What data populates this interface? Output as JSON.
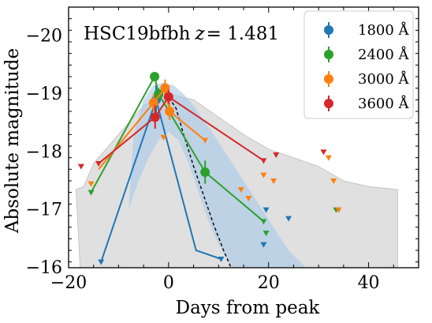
{
  "chart_data": {
    "type": "scatter",
    "xlabel": "Days from peak",
    "ylabel": "Absolute magnitude",
    "xlim": [
      -20,
      50
    ],
    "ylim": [
      -16,
      -20.5
    ],
    "invert_y": true,
    "x_ticks": [
      -20,
      0,
      20,
      40
    ],
    "y_ticks": [
      -20,
      -19,
      -18,
      -17,
      -16
    ],
    "annotation": {
      "name": "HSC19bfbh",
      "zlabel": "z",
      "zvalue": "= 1.481"
    },
    "legend_position": "top-right",
    "series": [
      {
        "name": "1800 Å",
        "color": "#1f77b4",
        "detections": [
          {
            "x": -2.5,
            "y": -18.9,
            "yerr": 0.25
          }
        ],
        "line": [
          [
            -13.5,
            -16.1
          ],
          [
            -2.5,
            -18.9
          ],
          [
            5.5,
            -16.3
          ],
          [
            10.5,
            -16.15
          ]
        ],
        "upper_limits": [
          [
            -13.5,
            -16.1
          ],
          [
            10.5,
            -16.15
          ],
          [
            19.5,
            -17.0
          ],
          [
            19.0,
            -16.4
          ],
          [
            24.0,
            -16.85
          ]
        ]
      },
      {
        "name": "2400 Å",
        "color": "#2ca02c",
        "detections": [
          {
            "x": -2.8,
            "y": -19.3,
            "yerr": 0.08
          },
          {
            "x": -2.0,
            "y": -19.0,
            "yerr": 0.1
          },
          {
            "x": 7.3,
            "y": -17.65,
            "yerr": 0.2
          }
        ],
        "line": [
          [
            -15.5,
            -17.3
          ],
          [
            -2.8,
            -19.3
          ],
          [
            -2.0,
            -19.0
          ],
          [
            7.3,
            -17.65
          ],
          [
            19.0,
            -16.8
          ]
        ],
        "upper_limits": [
          [
            -15.5,
            -17.3
          ],
          [
            19.0,
            -16.8
          ],
          [
            19.5,
            -16.6
          ],
          [
            33.5,
            -17.0
          ]
        ]
      },
      {
        "name": "3000 Å",
        "color": "#ff7f0e",
        "detections": [
          {
            "x": -3.0,
            "y": -18.85,
            "yerr": 0.15
          },
          {
            "x": -0.7,
            "y": -19.1,
            "yerr": 0.15
          },
          {
            "x": 0.2,
            "y": -18.7,
            "yerr": 0.15
          }
        ],
        "line": [
          [
            -14.0,
            -17.7
          ],
          [
            -3.0,
            -18.85
          ],
          [
            -0.7,
            -19.1
          ],
          [
            0.2,
            -18.7
          ],
          [
            7.3,
            -18.2
          ]
        ],
        "upper_limits": [
          [
            -15.5,
            -17.45
          ],
          [
            -1.0,
            -18.25
          ],
          [
            7.3,
            -18.2
          ],
          [
            14.5,
            -17.35
          ],
          [
            16.0,
            -17.2
          ],
          [
            19.0,
            -17.6
          ],
          [
            21.0,
            -17.5
          ],
          [
            32.0,
            -17.9
          ],
          [
            33.0,
            -17.5
          ],
          [
            34.0,
            -17.0
          ]
        ]
      },
      {
        "name": "3600 Å",
        "color": "#d62728",
        "detections": [
          {
            "x": -2.7,
            "y": -18.6,
            "yerr": 0.2
          },
          {
            "x": 0.0,
            "y": -18.95,
            "yerr": 0.12
          }
        ],
        "line": [
          [
            -14.0,
            -17.8
          ],
          [
            -2.7,
            -18.6
          ],
          [
            0.0,
            -18.95
          ],
          [
            19.0,
            -17.85
          ]
        ],
        "upper_limits": [
          [
            -17.5,
            -17.75
          ],
          [
            -14.0,
            -17.8
          ],
          [
            19.0,
            -17.85
          ],
          [
            21.5,
            -17.95
          ],
          [
            31.0,
            -18.0
          ]
        ]
      }
    ],
    "models": {
      "gray_band": {
        "color": "#d3d3d3",
        "upper": [
          [
            -18.5,
            -17.35
          ],
          [
            -17.0,
            -17.4
          ],
          [
            -15.0,
            -17.8
          ],
          [
            -10.0,
            -18.3
          ],
          [
            -5.0,
            -18.8
          ],
          [
            0.0,
            -19.0
          ],
          [
            5.0,
            -18.9
          ],
          [
            10.0,
            -18.6
          ],
          [
            15.0,
            -18.3
          ],
          [
            20.0,
            -18.05
          ],
          [
            25.0,
            -17.9
          ],
          [
            30.0,
            -17.75
          ],
          [
            35.0,
            -17.5
          ],
          [
            40.0,
            -17.4
          ],
          [
            45.8,
            -17.35
          ]
        ],
        "lower": [
          [
            -18.5,
            -17.35
          ],
          [
            -17.7,
            -16.0
          ],
          [
            -16.0,
            -16.0
          ],
          [
            -10.0,
            -16.0
          ],
          [
            -5.0,
            -16.0
          ],
          [
            0.0,
            -16.0
          ],
          [
            5.0,
            -16.0
          ],
          [
            10.0,
            -16.0
          ],
          [
            15.0,
            -16.0
          ],
          [
            20.0,
            -16.0
          ],
          [
            25.0,
            -16.0
          ],
          [
            30.0,
            -16.0
          ],
          [
            35.0,
            -16.0
          ],
          [
            40.0,
            -16.0
          ],
          [
            45.8,
            -16.0
          ]
        ]
      },
      "blue_band": {
        "color": "#a6c8e8",
        "upper": [
          [
            -8.0,
            -17.0
          ],
          [
            -7.0,
            -18.3
          ],
          [
            -5.0,
            -18.9
          ],
          [
            -3.0,
            -19.15
          ],
          [
            -1.0,
            -19.2
          ],
          [
            1.0,
            -19.15
          ],
          [
            3.0,
            -19.0
          ],
          [
            5.0,
            -18.8
          ],
          [
            7.0,
            -18.55
          ],
          [
            9.0,
            -18.3
          ],
          [
            12.0,
            -17.9
          ],
          [
            15.0,
            -17.5
          ],
          [
            18.0,
            -17.1
          ],
          [
            21.0,
            -16.7
          ],
          [
            24.0,
            -16.3
          ],
          [
            27.5,
            -16.0
          ]
        ],
        "lower": [
          [
            -8.0,
            -17.0
          ],
          [
            -6.0,
            -17.5
          ],
          [
            -4.0,
            -17.9
          ],
          [
            -2.0,
            -18.2
          ],
          [
            0.0,
            -18.35
          ],
          [
            2.0,
            -18.2
          ],
          [
            4.0,
            -17.8
          ],
          [
            6.0,
            -17.3
          ],
          [
            8.0,
            -16.8
          ],
          [
            10.0,
            -16.4
          ],
          [
            12.0,
            -16.1
          ],
          [
            13.0,
            -16.0
          ]
        ]
      },
      "dashed_curve": {
        "color": "#000000",
        "points": [
          [
            -2.0,
            -18.95
          ],
          [
            0.0,
            -18.95
          ],
          [
            1.5,
            -18.75
          ],
          [
            3.0,
            -18.3
          ],
          [
            5.0,
            -17.75
          ],
          [
            7.0,
            -17.25
          ],
          [
            9.0,
            -16.75
          ],
          [
            11.0,
            -16.3
          ],
          [
            12.5,
            -16.0
          ]
        ]
      }
    }
  }
}
